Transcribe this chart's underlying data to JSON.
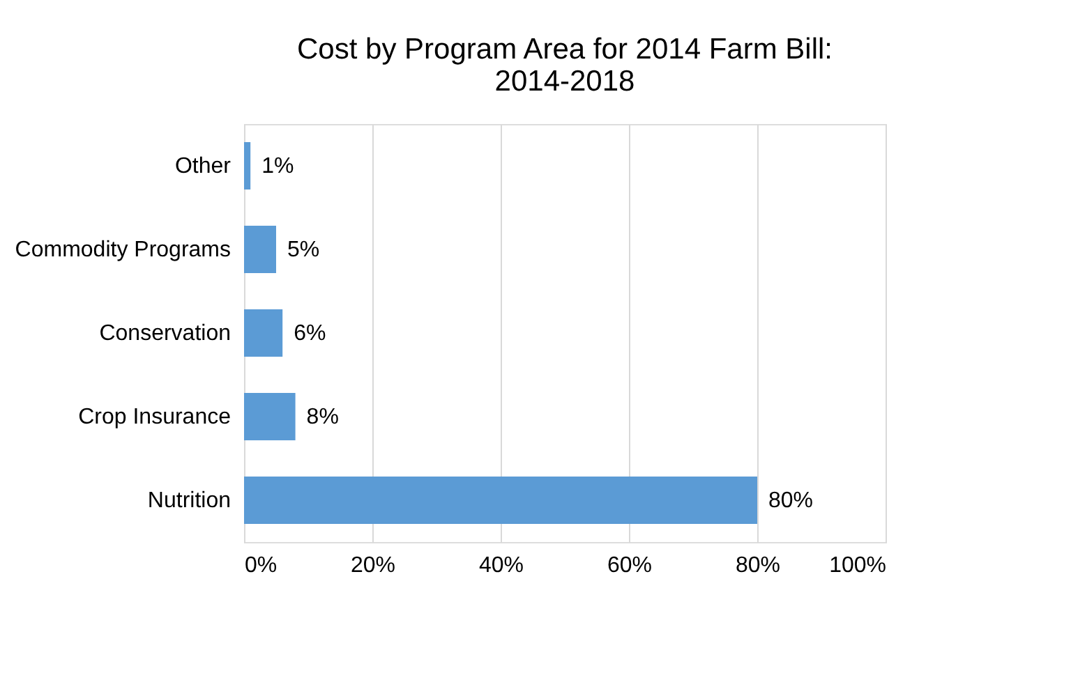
{
  "chart_data": {
    "type": "bar",
    "orientation": "horizontal",
    "title": "Cost by Program Area for 2014 Farm Bill: 2014-2018",
    "categories": [
      "Other",
      "Commodity Programs",
      "Conservation",
      "Crop Insurance",
      "Nutrition"
    ],
    "values": [
      1,
      5,
      6,
      8,
      80
    ],
    "value_labels": [
      "1%",
      "5%",
      "6%",
      "8%",
      "80%"
    ],
    "color": "#5b9bd5",
    "xlim": [
      0,
      100
    ],
    "xticks": [
      {
        "value": 0,
        "label": "0%"
      },
      {
        "value": 20,
        "label": "20%"
      },
      {
        "value": 40,
        "label": "40%"
      },
      {
        "value": 60,
        "label": "60%"
      },
      {
        "value": 80,
        "label": "80%"
      },
      {
        "value": 100,
        "label": "100%"
      }
    ],
    "grid": "x"
  }
}
